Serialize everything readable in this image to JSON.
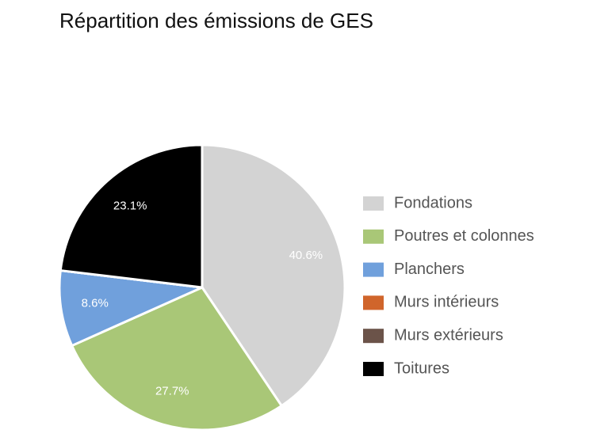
{
  "chart_data": {
    "type": "pie",
    "title": "Répartition des émissions de GES",
    "categories": [
      "Fondations",
      "Poutres et colonnes",
      "Planchers",
      "Murs intérieurs",
      "Murs extérieurs",
      "Toitures"
    ],
    "values": [
      40.6,
      27.7,
      8.6,
      0,
      0,
      23.1
    ],
    "value_labels": [
      "40.6%",
      "27.7%",
      "8.6%",
      null,
      null,
      "23.1%"
    ],
    "colors": [
      "#d3d3d3",
      "#a9c777",
      "#70a0dc",
      "#d0652b",
      "#6b5349",
      "#000000"
    ],
    "legend": "right"
  }
}
